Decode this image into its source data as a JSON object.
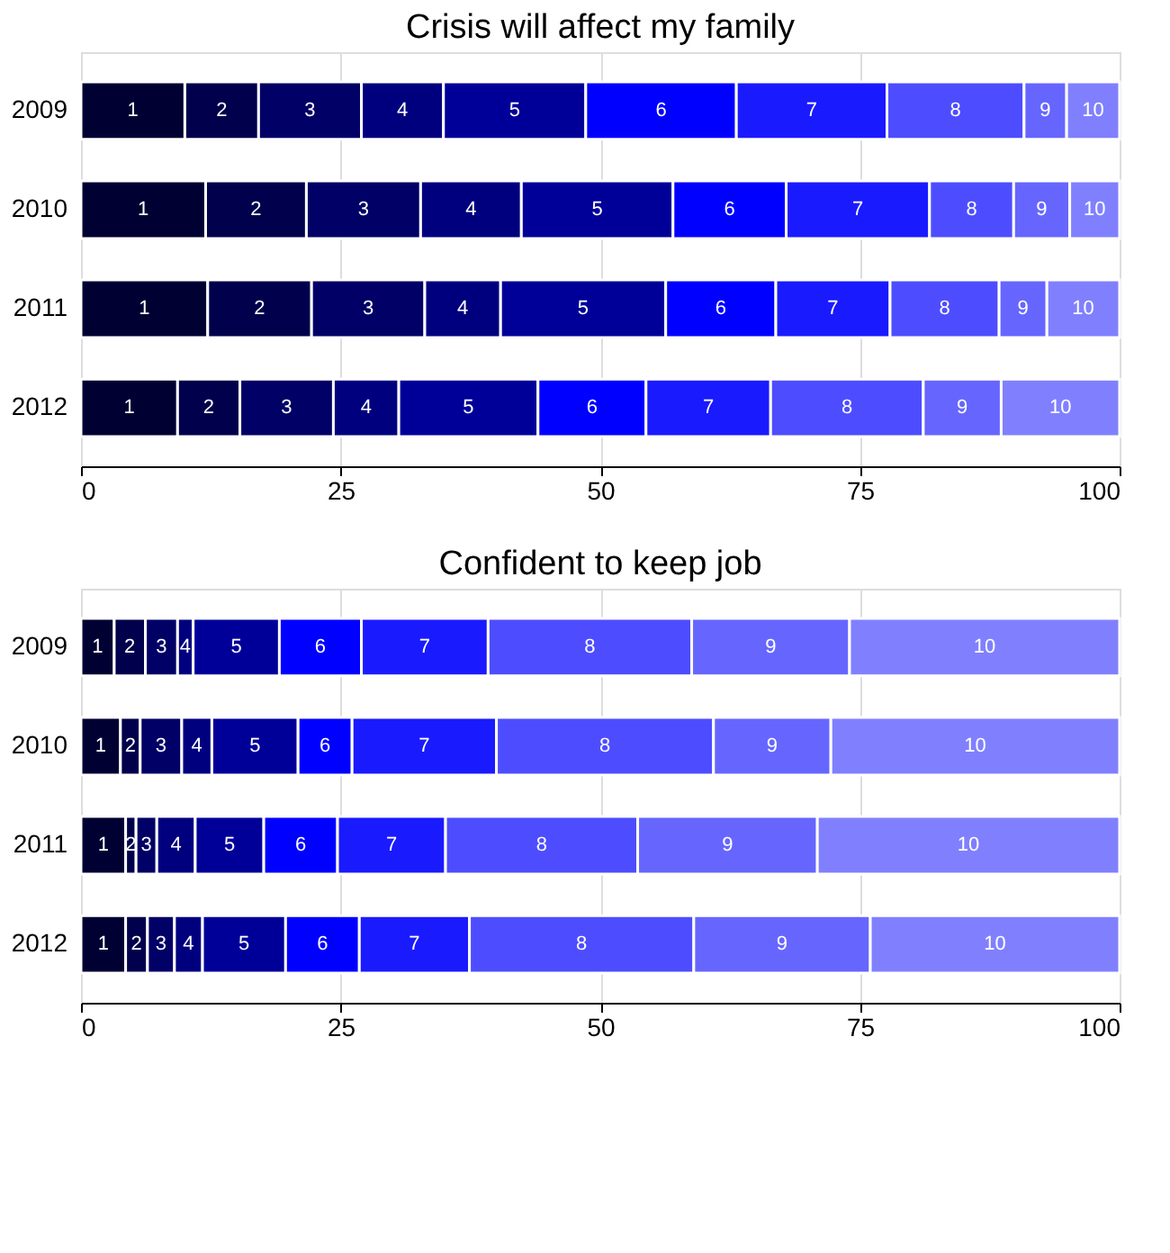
{
  "chart_data": [
    {
      "type": "bar",
      "title": "Crisis will affect my family",
      "orientation": "horizontal",
      "stacked": true,
      "categories": [
        "2009",
        "2010",
        "2011",
        "2012"
      ],
      "xlim": [
        0,
        100
      ],
      "xticks": [
        0,
        25,
        50,
        75,
        100
      ],
      "grid": "x",
      "legend": false,
      "series": [
        {
          "name": "1",
          "color": "#000033",
          "values": [
            10.0,
            12.0,
            12.2,
            9.3
          ]
        },
        {
          "name": "2",
          "color": "#00004c",
          "values": [
            7.1,
            9.7,
            10.0,
            6.0
          ]
        },
        {
          "name": "3",
          "color": "#000066",
          "values": [
            9.9,
            11.0,
            10.9,
            9.0
          ]
        },
        {
          "name": "4",
          "color": "#00007f",
          "values": [
            7.9,
            9.7,
            7.3,
            6.3
          ]
        },
        {
          "name": "5",
          "color": "#000099",
          "values": [
            13.7,
            14.6,
            15.9,
            13.4
          ]
        },
        {
          "name": "6",
          "color": "#0000ff",
          "values": [
            14.5,
            10.9,
            10.6,
            10.4
          ]
        },
        {
          "name": "7",
          "color": "#1a1aff",
          "values": [
            14.5,
            13.8,
            11.0,
            12.0
          ]
        },
        {
          "name": "8",
          "color": "#4d4dff",
          "values": [
            13.2,
            8.1,
            10.5,
            14.7
          ]
        },
        {
          "name": "9",
          "color": "#6666ff",
          "values": [
            4.1,
            5.4,
            4.6,
            7.5
          ]
        },
        {
          "name": "10",
          "color": "#8080ff",
          "values": [
            5.1,
            4.8,
            7.0,
            11.4
          ]
        }
      ]
    },
    {
      "type": "bar",
      "title": "Confident to keep job",
      "orientation": "horizontal",
      "stacked": true,
      "categories": [
        "2009",
        "2010",
        "2011",
        "2012"
      ],
      "xlim": [
        0,
        100
      ],
      "xticks": [
        0,
        25,
        50,
        75,
        100
      ],
      "grid": "x",
      "legend": false,
      "series": [
        {
          "name": "1",
          "color": "#000033",
          "values": [
            3.2,
            3.8,
            4.3,
            4.3
          ]
        },
        {
          "name": "2",
          "color": "#00004c",
          "values": [
            3.0,
            1.9,
            1.0,
            2.1
          ]
        },
        {
          "name": "3",
          "color": "#000066",
          "values": [
            3.1,
            4.0,
            2.0,
            2.6
          ]
        },
        {
          "name": "4",
          "color": "#00007f",
          "values": [
            1.5,
            2.9,
            3.7,
            2.7
          ]
        },
        {
          "name": "5",
          "color": "#000099",
          "values": [
            8.3,
            8.3,
            6.6,
            8.0
          ]
        },
        {
          "name": "6",
          "color": "#0000ff",
          "values": [
            7.9,
            5.2,
            7.1,
            7.1
          ]
        },
        {
          "name": "7",
          "color": "#1a1aff",
          "values": [
            12.2,
            13.9,
            10.4,
            10.6
          ]
        },
        {
          "name": "8",
          "color": "#4d4dff",
          "values": [
            19.6,
            20.9,
            18.5,
            21.6
          ]
        },
        {
          "name": "9",
          "color": "#6666ff",
          "values": [
            15.2,
            11.3,
            17.3,
            17.0
          ]
        },
        {
          "name": "10",
          "color": "#8080ff",
          "values": [
            26.0,
            27.8,
            29.1,
            24.0
          ]
        }
      ]
    }
  ]
}
